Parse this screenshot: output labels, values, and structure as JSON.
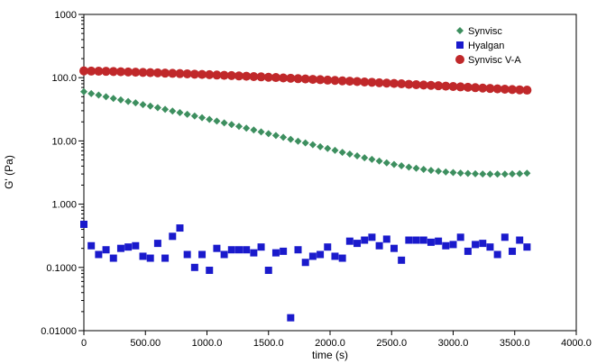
{
  "chart_data": {
    "type": "scatter",
    "xlabel": "time (s)",
    "ylabel": "G' (Pa)",
    "xlim": [
      0,
      4000
    ],
    "ylim": [
      0.01,
      1000
    ],
    "yscale": "log",
    "x_ticks": [
      0,
      500,
      1000,
      1500,
      2000,
      2500,
      3000,
      3500,
      4000
    ],
    "x_tick_labels": [
      "0",
      "500.00",
      "1000.0",
      "1500.0",
      "2000.0",
      "2500.0",
      "3000.0",
      "3500.0",
      "4000.0"
    ],
    "y_ticks": [
      0.01,
      0.1,
      1,
      10,
      100,
      1000
    ],
    "y_tick_labels": [
      "0.01000",
      "0.1000",
      "1.000",
      "10.00",
      "100.0",
      "1000"
    ],
    "grid": false,
    "legend_position": "top-right",
    "series": [
      {
        "name": "Synvisc",
        "marker": "diamond",
        "color": "#3d8f5f",
        "x": [
          0,
          60,
          120,
          180,
          240,
          300,
          360,
          420,
          480,
          540,
          600,
          660,
          720,
          780,
          840,
          900,
          960,
          1020,
          1080,
          1140,
          1200,
          1260,
          1320,
          1380,
          1440,
          1500,
          1560,
          1620,
          1680,
          1740,
          1800,
          1860,
          1920,
          1980,
          2040,
          2100,
          2160,
          2220,
          2280,
          2340,
          2400,
          2460,
          2520,
          2580,
          2640,
          2700,
          2760,
          2820,
          2880,
          2940,
          3000,
          3060,
          3120,
          3180,
          3240,
          3300,
          3360,
          3420,
          3480,
          3540,
          3600
        ],
        "y": [
          60,
          56,
          53,
          50,
          47,
          44.5,
          42,
          40,
          37.5,
          35.5,
          33.5,
          31.5,
          29.7,
          28,
          26.3,
          24.8,
          23.3,
          21.9,
          20.6,
          19.3,
          18.1,
          17,
          15.9,
          14.9,
          13.9,
          13,
          12.2,
          11.4,
          10.6,
          9.9,
          9.3,
          8.7,
          8.1,
          7.6,
          7.1,
          6.6,
          6.2,
          5.8,
          5.4,
          5.1,
          4.8,
          4.5,
          4.25,
          4.05,
          3.85,
          3.7,
          3.55,
          3.42,
          3.32,
          3.23,
          3.16,
          3.1,
          3.06,
          3.02,
          3,
          2.98,
          2.98,
          2.99,
          3.01,
          3.04,
          3.08
        ]
      },
      {
        "name": "Hyalgan",
        "marker": "square",
        "color": "#1a1acc",
        "x": [
          0,
          60,
          120,
          180,
          240,
          300,
          360,
          420,
          480,
          540,
          600,
          660,
          720,
          780,
          840,
          900,
          960,
          1020,
          1080,
          1140,
          1200,
          1260,
          1320,
          1380,
          1440,
          1500,
          1560,
          1620,
          1680,
          1740,
          1800,
          1860,
          1920,
          1980,
          2040,
          2100,
          2160,
          2220,
          2280,
          2340,
          2400,
          2460,
          2520,
          2580,
          2640,
          2700,
          2760,
          2820,
          2880,
          2940,
          3000,
          3060,
          3120,
          3180,
          3240,
          3300,
          3360,
          3420,
          3480,
          3540,
          3600
        ],
        "y": [
          0.48,
          0.22,
          0.16,
          0.19,
          0.14,
          0.2,
          0.21,
          0.22,
          0.15,
          0.14,
          0.24,
          0.14,
          0.31,
          0.42,
          0.16,
          0.1,
          0.16,
          0.09,
          0.2,
          0.16,
          0.19,
          0.19,
          0.19,
          0.17,
          0.21,
          0.09,
          0.17,
          0.18,
          0.016,
          0.19,
          0.12,
          0.15,
          0.16,
          0.21,
          0.15,
          0.14,
          0.26,
          0.24,
          0.27,
          0.3,
          0.22,
          0.28,
          0.2,
          0.13,
          0.27,
          0.27,
          0.27,
          0.25,
          0.26,
          0.22,
          0.23,
          0.3,
          0.18,
          0.23,
          0.24,
          0.21,
          0.16,
          0.3,
          0.18,
          0.27,
          0.21
        ]
      },
      {
        "name": "Synvisc V-A",
        "marker": "circle",
        "color": "#c0282a",
        "x": [
          0,
          60,
          120,
          180,
          240,
          300,
          360,
          420,
          480,
          540,
          600,
          660,
          720,
          780,
          840,
          900,
          960,
          1020,
          1080,
          1140,
          1200,
          1260,
          1320,
          1380,
          1440,
          1500,
          1560,
          1620,
          1680,
          1740,
          1800,
          1860,
          1920,
          1980,
          2040,
          2100,
          2160,
          2220,
          2280,
          2340,
          2400,
          2460,
          2520,
          2580,
          2640,
          2700,
          2760,
          2820,
          2880,
          2940,
          3000,
          3060,
          3120,
          3180,
          3240,
          3300,
          3360,
          3420,
          3480,
          3540,
          3600
        ],
        "y": [
          128,
          127,
          126.5,
          126,
          125,
          124,
          123,
          122,
          121,
          120,
          119,
          118,
          117,
          116,
          115,
          113.5,
          112.5,
          111.5,
          110,
          109,
          108,
          106.5,
          105.5,
          104,
          103,
          101.5,
          100.5,
          99,
          98,
          96.5,
          95.5,
          94,
          93,
          91.5,
          90.5,
          89,
          88,
          87,
          85.5,
          84.5,
          83,
          82,
          81,
          80,
          78.5,
          77.5,
          76.5,
          75.5,
          74.5,
          73.5,
          72.5,
          71.5,
          70.5,
          69.5,
          68.5,
          67.5,
          66.5,
          65.7,
          64.9,
          64.2,
          63.5
        ]
      }
    ]
  }
}
